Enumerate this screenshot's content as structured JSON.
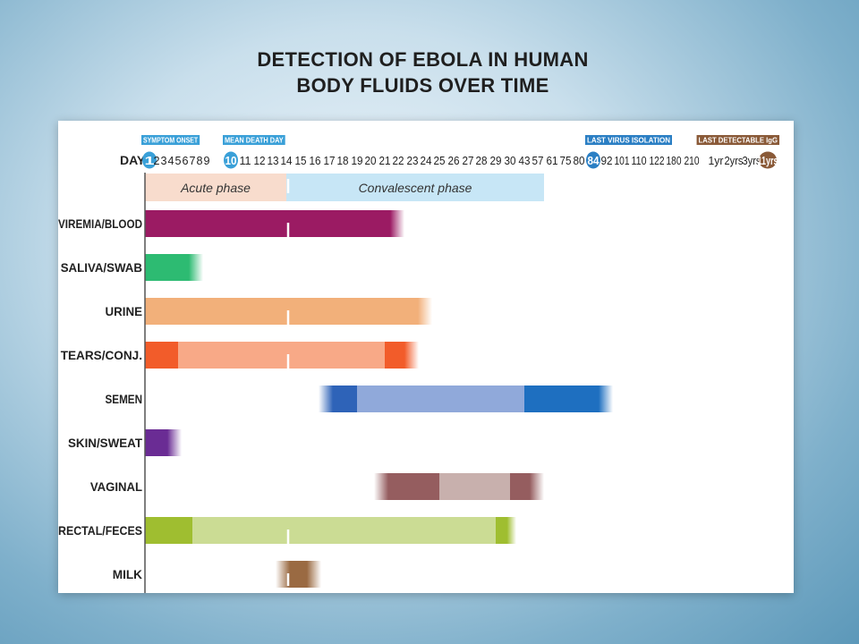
{
  "title": {
    "line1": "DETECTION OF EBOLA IN HUMAN",
    "line2": "BODY FLUIDS OVER TIME"
  },
  "chart_data": {
    "type": "bar",
    "subtype": "timeline-range",
    "x_axis_label": "DAY",
    "ticks": [
      "1",
      "2",
      "3",
      "4",
      "5",
      "6",
      "7",
      "8",
      "9",
      "10",
      "11",
      "12",
      "13",
      "14",
      "15",
      "16",
      "17",
      "18",
      "19",
      "20",
      "21",
      "22",
      "23",
      "24",
      "25",
      "26",
      "27",
      "28",
      "29",
      "30",
      "43",
      "57",
      "61",
      "75",
      "80",
      "84",
      "92",
      "101",
      "110",
      "122",
      "180",
      "210",
      "1yr",
      "2yrs",
      "3yrs",
      "11yrs"
    ],
    "highlighted_ticks": [
      {
        "tick": "1",
        "label": "SYMPTOM ONSET",
        "color": "#3aa0d8"
      },
      {
        "tick": "10",
        "label": "MEAN DEATH DAY",
        "color": "#3aa0d8"
      },
      {
        "tick": "84",
        "label": "LAST VIRUS ISOLATION",
        "color": "#2b7fc4"
      },
      {
        "tick": "11yrs",
        "label": "LAST DETECTABLE IgG",
        "color": "#8a5a38"
      }
    ],
    "phases": [
      {
        "label": "Acute phase",
        "start": "1",
        "end": "14",
        "color": "#f8dccd"
      },
      {
        "label": "Convalescent phase",
        "start": "14",
        "end": "57",
        "color": "#c7e6f6"
      }
    ],
    "divider_tick": "14",
    "fluids": [
      {
        "name": "VIREMIA/BLOOD",
        "segments": [
          {
            "start": "1",
            "end": "22",
            "color": "#9b1b63",
            "fade_end": true
          }
        ]
      },
      {
        "name": "SALIVA/SWAB",
        "segments": [
          {
            "start": "1",
            "end": "8",
            "color": "#2dbb72",
            "fade_end": true
          }
        ]
      },
      {
        "name": "URINE",
        "segments": [
          {
            "start": "1",
            "end": "24",
            "color": "#f2b07a",
            "fade_end": true
          }
        ]
      },
      {
        "name": "TEARS/CONJ.",
        "segments": [
          {
            "start": "1",
            "end": "5",
            "color": "#f25c2a"
          },
          {
            "start": "5",
            "end": "21",
            "color": "#f8a987"
          },
          {
            "start": "21",
            "end": "23",
            "color": "#f25c2a",
            "fade_end": true
          }
        ]
      },
      {
        "name": "SEMEN",
        "segments": [
          {
            "start": "17",
            "end": "19",
            "color": "#2e63b8",
            "fade_start": true
          },
          {
            "start": "19",
            "end": "43",
            "color": "#90a9da"
          },
          {
            "start": "43",
            "end": "92",
            "color": "#1e6fc0",
            "fade_end": true
          }
        ]
      },
      {
        "name": "SKIN/SWEAT",
        "segments": [
          {
            "start": "1",
            "end": "5",
            "color": "#6a2c94",
            "fade_end": true
          }
        ]
      },
      {
        "name": "VAGINAL",
        "segments": [
          {
            "start": "21",
            "end": "25",
            "color": "#955d5f",
            "fade_start": true
          },
          {
            "start": "25",
            "end": "30",
            "color": "#c8b0ad"
          },
          {
            "start": "30",
            "end": "57",
            "color": "#955d5f",
            "fade_end": true
          }
        ]
      },
      {
        "name": "RECTAL/FECES",
        "segments": [
          {
            "start": "1",
            "end": "7",
            "color": "#9fbe30"
          },
          {
            "start": "7",
            "end": "29",
            "color": "#cbdc94"
          },
          {
            "start": "29",
            "end": "30",
            "color": "#9fbe30",
            "fade_end": true
          }
        ]
      },
      {
        "name": "MILK",
        "segments": [
          {
            "start": "14",
            "end": "16",
            "color": "#9a6a42",
            "fade_start": true,
            "fade_end": true
          }
        ]
      }
    ]
  }
}
